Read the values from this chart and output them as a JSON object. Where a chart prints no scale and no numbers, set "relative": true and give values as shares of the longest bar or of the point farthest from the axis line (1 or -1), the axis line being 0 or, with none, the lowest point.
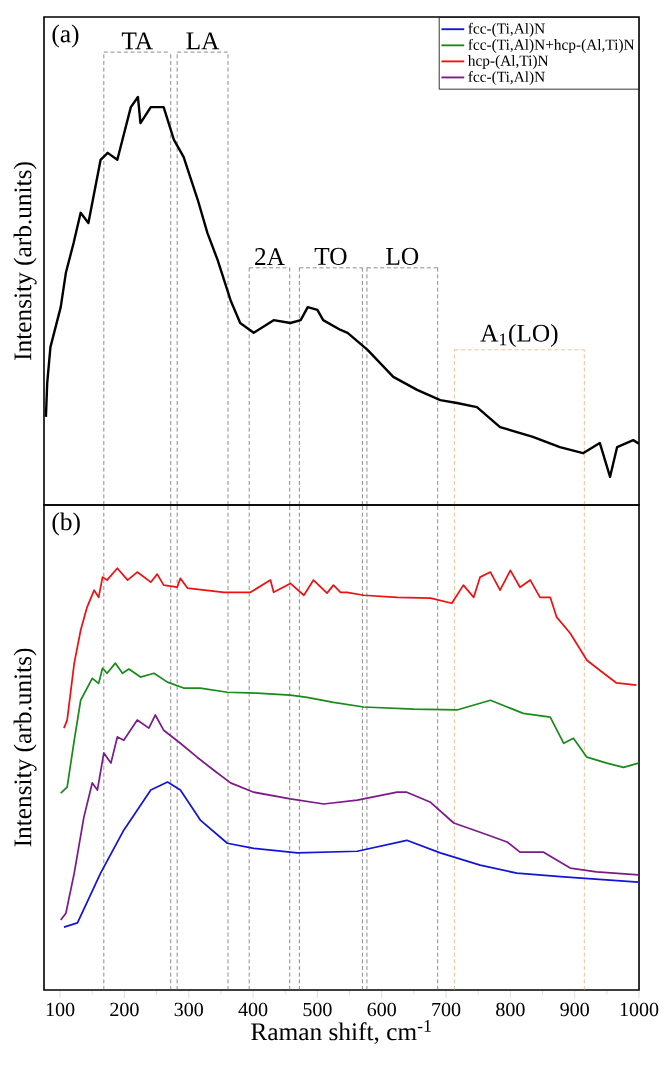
{
  "chart_data": [
    {
      "type": "line",
      "ylabel": "Intensity (arb.units)",
      "relative": true,
      "tick_labels": false,
      "xlim": [
        75,
        1000
      ],
      "xticks": [
        100,
        200,
        300,
        400,
        500,
        600,
        700,
        800,
        900,
        1000
      ],
      "color": "#000000",
      "x": [
        78,
        80,
        85,
        101,
        109,
        121,
        132,
        144,
        163,
        174,
        189,
        210,
        221,
        225,
        241,
        261,
        277,
        292,
        314,
        329,
        345,
        365,
        380,
        401,
        432,
        458,
        474,
        485,
        500,
        509,
        536,
        547,
        578,
        618,
        655,
        691,
        717,
        748,
        784,
        835,
        877,
        913,
        939,
        955,
        966,
        991,
        1000
      ],
      "values": [
        0.216,
        0.299,
        0.387,
        0.485,
        0.569,
        0.642,
        0.716,
        0.691,
        0.846,
        0.863,
        0.846,
        0.975,
        1.0,
        0.936,
        0.975,
        0.975,
        0.895,
        0.853,
        0.748,
        0.667,
        0.6,
        0.502,
        0.446,
        0.422,
        0.453,
        0.446,
        0.453,
        0.485,
        0.478,
        0.453,
        0.429,
        0.422,
        0.38,
        0.314,
        0.282,
        0.257,
        0.25,
        0.24,
        0.191,
        0.167,
        0.142,
        0.127,
        0.152,
        0.069,
        0.142,
        0.159,
        0.15
      ],
      "ref_lines": [
        {
          "axis": "x",
          "value": 168,
          "color": "#555555",
          "line_style": "dashed"
        },
        {
          "axis": "x",
          "value": 272,
          "color": "#555555",
          "line_style": "dashed"
        },
        {
          "axis": "x",
          "value": 282,
          "color": "#555555",
          "line_style": "dashed"
        },
        {
          "axis": "x",
          "value": 361,
          "color": "#555555",
          "line_style": "dashed"
        },
        {
          "axis": "x",
          "value": 394,
          "color": "#555555",
          "line_style": "dashed"
        },
        {
          "axis": "x",
          "value": 457,
          "color": "#555555",
          "line_style": "dashed"
        },
        {
          "axis": "x",
          "value": 472,
          "color": "#555555",
          "line_style": "dashed"
        },
        {
          "axis": "x",
          "value": 570,
          "color": "#555555",
          "line_style": "dashed"
        },
        {
          "axis": "x",
          "value": 577,
          "color": "#555555",
          "line_style": "dashed"
        },
        {
          "axis": "x",
          "value": 687,
          "color": "#555555",
          "line_style": "dashed"
        },
        {
          "axis": "x",
          "value": 713,
          "color": "#e8a060",
          "line_style": "dashed"
        },
        {
          "axis": "x",
          "value": 915,
          "color": "#e8a060",
          "line_style": "dashed"
        }
      ],
      "annotations": [
        "(a)",
        "TA",
        "LA",
        "2A",
        "TO",
        "LO",
        "A$_{1}$(LO)"
      ]
    },
    {
      "type": "line",
      "ylabel": "Intensity (arb.units)",
      "xlabel": "Raman shift, cm$^{-1}$",
      "relative": true,
      "xlim": [
        75,
        1000
      ],
      "xticks": [
        100,
        200,
        300,
        400,
        500,
        600,
        700,
        800,
        900,
        1000
      ],
      "legend": "top right",
      "series": [
        {
          "name": "fcc-(Ti,Al)N",
          "color": "#1414d8",
          "x": [
            106,
            127,
            163,
            199,
            241,
            267,
            287,
            318,
            360,
            401,
            469,
            562,
            639,
            691,
            753,
            810,
            883,
            999
          ],
          "values": [
            0.149,
            0.159,
            0.277,
            0.379,
            0.474,
            0.493,
            0.474,
            0.403,
            0.348,
            0.336,
            0.325,
            0.329,
            0.355,
            0.325,
            0.296,
            0.277,
            0.268,
            0.256
          ]
        },
        {
          "name": "fcc-(Ti,Al)N+hcp-(Al,Ti)N",
          "color": "#1a8a1a",
          "x": [
            101,
            111,
            122,
            132,
            150,
            160,
            166,
            173,
            186,
            197,
            207,
            225,
            246,
            267,
            292,
            318,
            360,
            406,
            458,
            484,
            525,
            572,
            650,
            717,
            769,
            820,
            862,
            883,
            898,
            919,
            950,
            976,
            999
          ],
          "values": [
            0.467,
            0.481,
            0.592,
            0.687,
            0.739,
            0.727,
            0.763,
            0.751,
            0.775,
            0.751,
            0.761,
            0.742,
            0.751,
            0.73,
            0.716,
            0.716,
            0.706,
            0.704,
            0.699,
            0.694,
            0.682,
            0.671,
            0.666,
            0.664,
            0.687,
            0.656,
            0.647,
            0.585,
            0.597,
            0.552,
            0.538,
            0.528,
            0.538
          ]
        },
        {
          "name": "hcp-(Al,Ti)N",
          "color": "#ee1111",
          "x": [
            106,
            111,
            122,
            132,
            142,
            153,
            160,
            166,
            173,
            189,
            205,
            220,
            241,
            251,
            261,
            282,
            287,
            298,
            355,
            396,
            427,
            432,
            458,
            479,
            494,
            515,
            525,
            536,
            546,
            572,
            624,
            676,
            709,
            727,
            743,
            753,
            769,
            784,
            800,
            815,
            831,
            846,
            862,
            872,
            893,
            919,
            945,
            965,
            996
          ],
          "values": [
            0.621,
            0.64,
            0.775,
            0.853,
            0.908,
            0.948,
            0.931,
            0.979,
            0.972,
            1.0,
            0.972,
            0.991,
            0.967,
            0.986,
            0.96,
            0.955,
            0.976,
            0.953,
            0.943,
            0.943,
            0.972,
            0.943,
            0.964,
            0.936,
            0.972,
            0.941,
            0.96,
            0.943,
            0.943,
            0.936,
            0.931,
            0.929,
            0.917,
            0.96,
            0.931,
            0.979,
            0.991,
            0.948,
            0.995,
            0.955,
            0.972,
            0.931,
            0.931,
            0.884,
            0.846,
            0.782,
            0.751,
            0.728,
            0.723
          ]
        },
        {
          "name": "fcc-(Ti,Al)N",
          "color": "#7b1b8a",
          "x": [
            101,
            109,
            122,
            137,
            150,
            158,
            168,
            179,
            189,
            199,
            220,
            238,
            248,
            261,
            287,
            313,
            339,
            365,
            401,
            458,
            510,
            562,
            624,
            639,
            676,
            712,
            753,
            795,
            815,
            851,
            893,
            934,
            999
          ],
          "values": [
            0.166,
            0.182,
            0.277,
            0.41,
            0.491,
            0.474,
            0.562,
            0.538,
            0.6,
            0.592,
            0.64,
            0.621,
            0.652,
            0.616,
            0.585,
            0.552,
            0.521,
            0.491,
            0.469,
            0.453,
            0.441,
            0.45,
            0.469,
            0.469,
            0.445,
            0.396,
            0.374,
            0.351,
            0.327,
            0.327,
            0.289,
            0.28,
            0.273
          ]
        }
      ],
      "ref_lines": [
        {
          "axis": "x",
          "value": 168,
          "color": "#555555",
          "line_style": "dashed"
        },
        {
          "axis": "x",
          "value": 272,
          "color": "#555555",
          "line_style": "dashed"
        },
        {
          "axis": "x",
          "value": 282,
          "color": "#555555",
          "line_style": "dashed"
        },
        {
          "axis": "x",
          "value": 361,
          "color": "#555555",
          "line_style": "dashed"
        },
        {
          "axis": "x",
          "value": 394,
          "color": "#555555",
          "line_style": "dashed"
        },
        {
          "axis": "x",
          "value": 457,
          "color": "#555555",
          "line_style": "dashed"
        },
        {
          "axis": "x",
          "value": 472,
          "color": "#555555",
          "line_style": "dashed"
        },
        {
          "axis": "x",
          "value": 570,
          "color": "#555555",
          "line_style": "dashed"
        },
        {
          "axis": "x",
          "value": 577,
          "color": "#555555",
          "line_style": "dashed"
        },
        {
          "axis": "x",
          "value": 687,
          "color": "#555555",
          "line_style": "dashed"
        },
        {
          "axis": "x",
          "value": 713,
          "color": "#e8a060",
          "line_style": "dashed"
        },
        {
          "axis": "x",
          "value": 915,
          "color": "#e8a060",
          "line_style": "dashed"
        }
      ],
      "annotations": [
        "(b)"
      ]
    }
  ]
}
